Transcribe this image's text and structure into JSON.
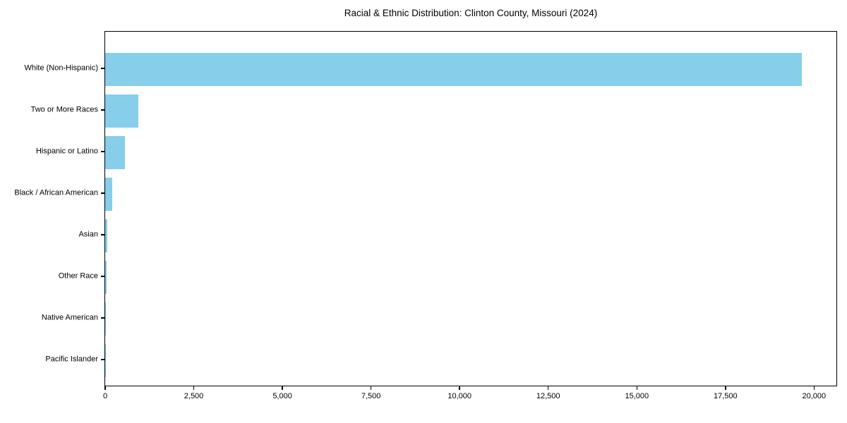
{
  "title": "Racial & Ethnic Distribution: Clinton County, Missouri (2024)",
  "chart_data": {
    "type": "bar",
    "orientation": "horizontal",
    "title": "Racial & Ethnic Distribution: Clinton County, Missouri (2024)",
    "xlabel": "",
    "ylabel": "",
    "categories": [
      "White (Non-Hispanic)",
      "Two or More Races",
      "Hispanic or Latino",
      "Black / African American",
      "Asian",
      "Other Race",
      "Native American",
      "Pacific Islander"
    ],
    "values": [
      19650,
      930,
      560,
      200,
      60,
      40,
      25,
      10
    ],
    "xlim": [
      0,
      20650
    ],
    "x_ticks": [
      0,
      2500,
      5000,
      7500,
      10000,
      12500,
      15000,
      17500,
      20000
    ],
    "x_tick_labels": [
      "0",
      "2,500",
      "5,000",
      "7,500",
      "10,000",
      "12,500",
      "15,000",
      "17,500",
      "20,000"
    ],
    "bar_color": "#87CEEB",
    "grid": false,
    "legend": null,
    "background_color": "#ffffff",
    "spine_color": "#000000",
    "text_color": "#000000"
  }
}
